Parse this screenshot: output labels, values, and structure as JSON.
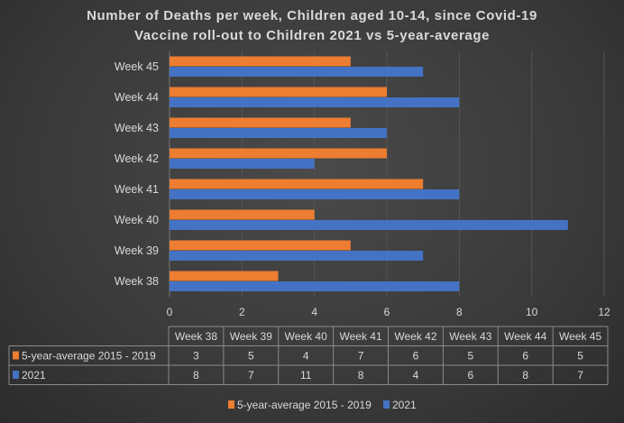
{
  "chart_data": {
    "type": "bar",
    "orientation": "horizontal",
    "title": "Number of Deaths per week, Children aged 10-14, since Covid-19 Vaccine roll-out to Children 2021 vs 5-year-average",
    "title_lines": [
      "Number of Deaths per week, Children aged 10-14, since Covid-19",
      "Vaccine roll-out to Children 2021 vs 5-year-average"
    ],
    "categories": [
      "Week 38",
      "Week 39",
      "Week 40",
      "Week 41",
      "Week 42",
      "Week 43",
      "Week 44",
      "Week 45"
    ],
    "series": [
      {
        "name": "5-year-average 2015 - 2019",
        "color": "#ed7d31",
        "values": [
          3,
          5,
          4,
          7,
          6,
          5,
          6,
          5
        ]
      },
      {
        "name": "2021",
        "color": "#4472c4",
        "values": [
          8,
          7,
          11,
          8,
          4,
          6,
          8,
          7
        ]
      }
    ],
    "xlim": [
      0,
      12
    ],
    "xticks": [
      "0",
      "2",
      "4",
      "6",
      "8",
      "10",
      "12"
    ],
    "grid": true,
    "legend": "bottom",
    "data_table": true
  }
}
